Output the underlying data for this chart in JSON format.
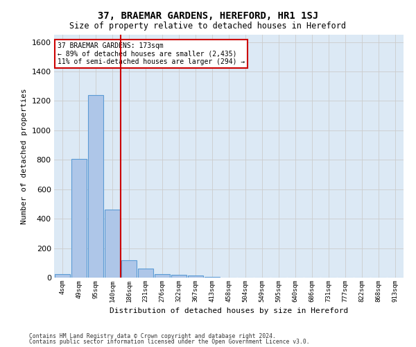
{
  "title": "37, BRAEMAR GARDENS, HEREFORD, HR1 1SJ",
  "subtitle": "Size of property relative to detached houses in Hereford",
  "xlabel": "Distribution of detached houses by size in Hereford",
  "ylabel": "Number of detached properties",
  "bar_values": [
    25,
    805,
    1240,
    460,
    120,
    60,
    25,
    20,
    15,
    5,
    0,
    0,
    0,
    0,
    0,
    0,
    0,
    0,
    0,
    0,
    0
  ],
  "bar_labels": [
    "4sqm",
    "49sqm",
    "95sqm",
    "140sqm",
    "186sqm",
    "231sqm",
    "276sqm",
    "322sqm",
    "367sqm",
    "413sqm",
    "458sqm",
    "504sqm",
    "549sqm",
    "595sqm",
    "640sqm",
    "686sqm",
    "731sqm",
    "777sqm",
    "822sqm",
    "868sqm",
    "913sqm"
  ],
  "bar_color": "#aec6e8",
  "bar_edge_color": "#5b9bd5",
  "vline_pos": 3.5,
  "vline_color": "#cc0000",
  "annotation_text": "37 BRAEMAR GARDENS: 173sqm\n← 89% of detached houses are smaller (2,435)\n11% of semi-detached houses are larger (294) →",
  "annotation_box_color": "#cc0000",
  "annotation_text_color": "#000000",
  "ylim": [
    0,
    1650
  ],
  "yticks": [
    0,
    200,
    400,
    600,
    800,
    1000,
    1200,
    1400,
    1600
  ],
  "grid_color": "#cccccc",
  "background_color": "#dce9f5",
  "footer_line1": "Contains HM Land Registry data © Crown copyright and database right 2024.",
  "footer_line2": "Contains public sector information licensed under the Open Government Licence v3.0."
}
